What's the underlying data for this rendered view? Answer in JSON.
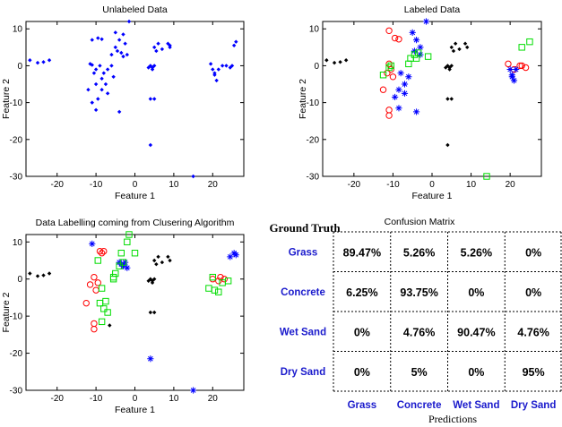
{
  "colors": {
    "blue": "#0000ff",
    "black": "#000000",
    "red": "#ff0000",
    "green": "#00dd00",
    "label_blue": "#1a1acc"
  },
  "chart_data": [
    {
      "type": "scatter",
      "title": "Unlabeled Data",
      "xlabel": "Feature 1",
      "ylabel": "Feature 2",
      "xlim": [
        -28,
        28
      ],
      "ylim": [
        -30,
        12
      ],
      "xticks": [
        -20,
        -10,
        0,
        10,
        20
      ],
      "yticks": [
        10,
        0,
        -10,
        -20,
        -30
      ],
      "legend": "none",
      "series": [
        {
          "color": "blue",
          "marker": "dot",
          "points": [
            [
              -27,
              1.5
            ],
            [
              -25,
              0.8
            ],
            [
              -23.5,
              1
            ],
            [
              -22,
              1.5
            ],
            [
              -11,
              7
            ],
            [
              -9.5,
              7.5
            ],
            [
              -8.5,
              7.2
            ],
            [
              -5,
              9
            ],
            [
              -4,
              7
            ],
            [
              -3,
              8.5
            ],
            [
              -4.5,
              4
            ],
            [
              -6,
              3
            ],
            [
              -3.5,
              3.5
            ],
            [
              -5,
              5
            ],
            [
              -3,
              2.5
            ],
            [
              -2,
              3
            ],
            [
              -1.5,
              12
            ],
            [
              -2.5,
              6
            ],
            [
              -11,
              0.2
            ],
            [
              -10,
              -1
            ],
            [
              -9,
              0
            ],
            [
              -8,
              -2
            ],
            [
              -7,
              -1
            ],
            [
              -6,
              0
            ],
            [
              -5.5,
              -3
            ],
            [
              -8.5,
              -3.5
            ],
            [
              -10.5,
              -2
            ],
            [
              -11.5,
              0.5
            ],
            [
              -12,
              -6.5
            ],
            [
              -10,
              -5
            ],
            [
              -8.5,
              -6.5
            ],
            [
              -7,
              -7.5
            ],
            [
              -7.5,
              -5
            ],
            [
              -10,
              -12
            ],
            [
              -9.5,
              -9
            ],
            [
              -11,
              -10
            ],
            [
              -4,
              -12.5
            ],
            [
              3.5,
              -0.5
            ],
            [
              4,
              0
            ],
            [
              4.5,
              -0.5
            ],
            [
              5,
              0
            ],
            [
              4.5,
              -1
            ],
            [
              5.5,
              4
            ],
            [
              6,
              6
            ],
            [
              5,
              5
            ],
            [
              8.5,
              6
            ],
            [
              9,
              5
            ],
            [
              7,
              4.5
            ],
            [
              9,
              5.5
            ],
            [
              4,
              -9
            ],
            [
              5,
              -9
            ],
            [
              4,
              -21.5
            ],
            [
              19.5,
              0.5
            ],
            [
              20,
              -1
            ],
            [
              20.5,
              -2.5
            ],
            [
              21,
              -4
            ],
            [
              20.5,
              -2
            ],
            [
              21.5,
              -1
            ],
            [
              22.5,
              0
            ],
            [
              23.5,
              0
            ],
            [
              25,
              0
            ],
            [
              24.5,
              -0.5
            ],
            [
              25.5,
              5.5
            ],
            [
              26,
              6.5
            ],
            [
              15,
              -30
            ]
          ]
        }
      ]
    },
    {
      "type": "scatter",
      "title": "Labeled Data",
      "xlabel": "Feature 1",
      "ylabel": "Feature 2",
      "xlim": [
        -28,
        28
      ],
      "ylim": [
        -30,
        12
      ],
      "xticks": [
        -20,
        -10,
        0,
        10,
        20
      ],
      "yticks": [
        10,
        0,
        -10,
        -20,
        -30
      ],
      "legend": "none",
      "series": [
        {
          "color": "black",
          "marker": "dot",
          "points": [
            [
              -27,
              1.5
            ],
            [
              -25,
              0.8
            ],
            [
              -23.5,
              1
            ],
            [
              -22,
              1.5
            ],
            [
              3.5,
              -0.5
            ],
            [
              4,
              0
            ],
            [
              4.5,
              -0.5
            ],
            [
              5,
              0
            ],
            [
              4.5,
              -1
            ],
            [
              5.5,
              4
            ],
            [
              6,
              6
            ],
            [
              5,
              5
            ],
            [
              8.5,
              6
            ],
            [
              9,
              5
            ],
            [
              7,
              4.5
            ],
            [
              4,
              -9
            ],
            [
              5,
              -9
            ],
            [
              4,
              -21.5
            ]
          ]
        },
        {
          "color": "red",
          "marker": "circle",
          "points": [
            [
              -11,
              9.5
            ],
            [
              -9.5,
              7.5
            ],
            [
              -8.5,
              7.2
            ],
            [
              -11,
              0.5
            ],
            [
              -10.5,
              -1
            ],
            [
              -11.5,
              -2
            ],
            [
              -10,
              -3
            ],
            [
              -12.5,
              -6.5
            ],
            [
              -11,
              -12
            ],
            [
              -11,
              -13.5
            ],
            [
              19.5,
              0.5
            ],
            [
              21,
              -1
            ],
            [
              22.5,
              0
            ],
            [
              23,
              0
            ],
            [
              24,
              -0.5
            ]
          ]
        },
        {
          "color": "blue",
          "marker": "star",
          "points": [
            [
              -5,
              9
            ],
            [
              -4,
              7
            ],
            [
              -3,
              5
            ],
            [
              -3,
              3
            ],
            [
              -1.5,
              12
            ],
            [
              -4.5,
              4
            ],
            [
              -8,
              -2
            ],
            [
              -6,
              -3
            ],
            [
              -7,
              -5
            ],
            [
              -8.5,
              -6.5
            ],
            [
              -9.5,
              -8.5
            ],
            [
              -7,
              -7.5
            ],
            [
              -8.5,
              -11.5
            ],
            [
              -4,
              -12.5
            ],
            [
              20,
              -1
            ],
            [
              20.5,
              -2.5
            ],
            [
              21,
              -4
            ],
            [
              20.5,
              -3
            ],
            [
              21.5,
              -1
            ]
          ]
        },
        {
          "color": "green",
          "marker": "square",
          "points": [
            [
              -12.5,
              -2.5
            ],
            [
              -10.5,
              0
            ],
            [
              -11,
              -0.5
            ],
            [
              -6,
              0.5
            ],
            [
              -5.5,
              2
            ],
            [
              -4.5,
              3
            ],
            [
              -3.5,
              3.5
            ],
            [
              -4,
              2
            ],
            [
              -1,
              2.5
            ],
            [
              14,
              -30
            ],
            [
              23,
              5
            ],
            [
              25,
              6.5
            ]
          ]
        }
      ]
    },
    {
      "type": "scatter",
      "title": "Data Labelling coming from Clusering Algorithm",
      "xlabel": "Feature 1",
      "ylabel": "Feature 2",
      "xlim": [
        -28,
        28
      ],
      "ylim": [
        -30,
        12
      ],
      "xticks": [
        -20,
        -10,
        0,
        10,
        20
      ],
      "yticks": [
        10,
        0,
        -10,
        -20,
        -30
      ],
      "legend": "none",
      "series": [
        {
          "color": "black",
          "marker": "dot",
          "points": [
            [
              -27,
              1.5
            ],
            [
              -25,
              0.8
            ],
            [
              -23.5,
              1
            ],
            [
              -22,
              1.5
            ],
            [
              3.5,
              -0.5
            ],
            [
              4,
              0
            ],
            [
              4.5,
              -0.5
            ],
            [
              5,
              0
            ],
            [
              4.5,
              -1
            ],
            [
              5.5,
              4
            ],
            [
              6,
              6
            ],
            [
              5,
              5
            ],
            [
              8.5,
              6
            ],
            [
              9,
              5
            ],
            [
              7,
              4.5
            ],
            [
              4,
              -9
            ],
            [
              5,
              -9
            ],
            [
              -6.5,
              -12.5
            ]
          ]
        },
        {
          "color": "red",
          "marker": "circle",
          "points": [
            [
              -10.5,
              0.5
            ],
            [
              -9.5,
              -1
            ],
            [
              -11.5,
              -1.5
            ],
            [
              -10,
              -3
            ],
            [
              -12.5,
              -6.5
            ],
            [
              -10.5,
              -12
            ],
            [
              -10.5,
              -13.5
            ],
            [
              -9,
              7.5
            ],
            [
              -8.5,
              7
            ],
            [
              -8,
              7.5
            ],
            [
              20,
              0
            ],
            [
              22,
              0.5
            ],
            [
              23,
              0
            ],
            [
              21.5,
              -0.5
            ]
          ]
        },
        {
          "color": "blue",
          "marker": "star",
          "points": [
            [
              -11,
              9.5
            ],
            [
              -3.5,
              4
            ],
            [
              -3,
              3.5
            ],
            [
              -2.5,
              4.5
            ],
            [
              -2,
              3
            ],
            [
              -4,
              4.5
            ],
            [
              4,
              -21.5
            ],
            [
              15,
              -30
            ],
            [
              24.5,
              6
            ],
            [
              25.5,
              7
            ],
            [
              26,
              6.5
            ]
          ]
        },
        {
          "color": "green",
          "marker": "square",
          "points": [
            [
              -9.5,
              5
            ],
            [
              -8.5,
              -2.5
            ],
            [
              -9,
              -6.5
            ],
            [
              -7.5,
              -6
            ],
            [
              -8,
              -8
            ],
            [
              -7,
              -9
            ],
            [
              -8.5,
              -11.5
            ],
            [
              -5.5,
              0.5
            ],
            [
              -5,
              1.5
            ],
            [
              -4,
              3.5
            ],
            [
              -3,
              4.5
            ],
            [
              -3.5,
              7
            ],
            [
              -2,
              10
            ],
            [
              -1.5,
              12
            ],
            [
              0,
              7
            ],
            [
              -5.5,
              0
            ],
            [
              19,
              -2.5
            ],
            [
              20.5,
              -3
            ],
            [
              21.5,
              -3.5
            ],
            [
              20,
              0.5
            ],
            [
              22.5,
              -1
            ],
            [
              24,
              -0.5
            ]
          ]
        }
      ]
    },
    {
      "type": "table",
      "title": "Confusion Matrix",
      "row_header": "Ground Truth",
      "col_header": "Predictions",
      "rows": [
        "Grass",
        "Concrete",
        "Wet Sand",
        "Dry Sand"
      ],
      "cols": [
        "Grass",
        "Concrete",
        "Wet Sand",
        "Dry Sand"
      ],
      "cells": [
        [
          "89.47%",
          "5.26%",
          "5.26%",
          "0%"
        ],
        [
          "6.25%",
          "93.75%",
          "0%",
          "0%"
        ],
        [
          "0%",
          "4.76%",
          "90.47%",
          "4.76%"
        ],
        [
          "0%",
          "5%",
          "0%",
          "95%"
        ]
      ]
    }
  ]
}
